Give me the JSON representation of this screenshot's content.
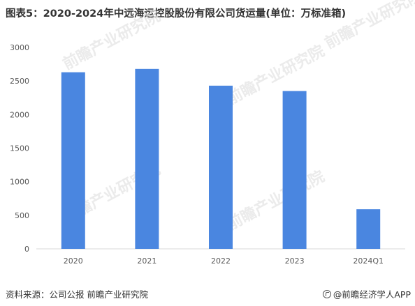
{
  "title": "图表5：2020-2024年中远海运控股股份有限公司货运量(单位：万标准箱)",
  "source": "资料来源：公司公报 前瞻产业研究院",
  "brand": "@前瞻经济学人APP",
  "watermark": "前瞻产业研究院",
  "colors": {
    "bar": "#4a86e0",
    "axis": "#d9d9d9",
    "tick_text": "#595959",
    "watermark": "#e3e3e3"
  },
  "chart_data": {
    "type": "bar",
    "categories": [
      "2020",
      "2021",
      "2022",
      "2023",
      "2024Q1"
    ],
    "values": [
      2630,
      2680,
      2430,
      2350,
      590
    ],
    "title": "图表5：2020-2024年中远海运控股股份有限公司货运量(单位：万标准箱)",
    "xlabel": "",
    "ylabel": "",
    "ylim": [
      0,
      3000
    ],
    "yticks": [
      0,
      500,
      1000,
      1500,
      2000,
      2500,
      3000
    ],
    "grid": false,
    "legend": "none"
  }
}
